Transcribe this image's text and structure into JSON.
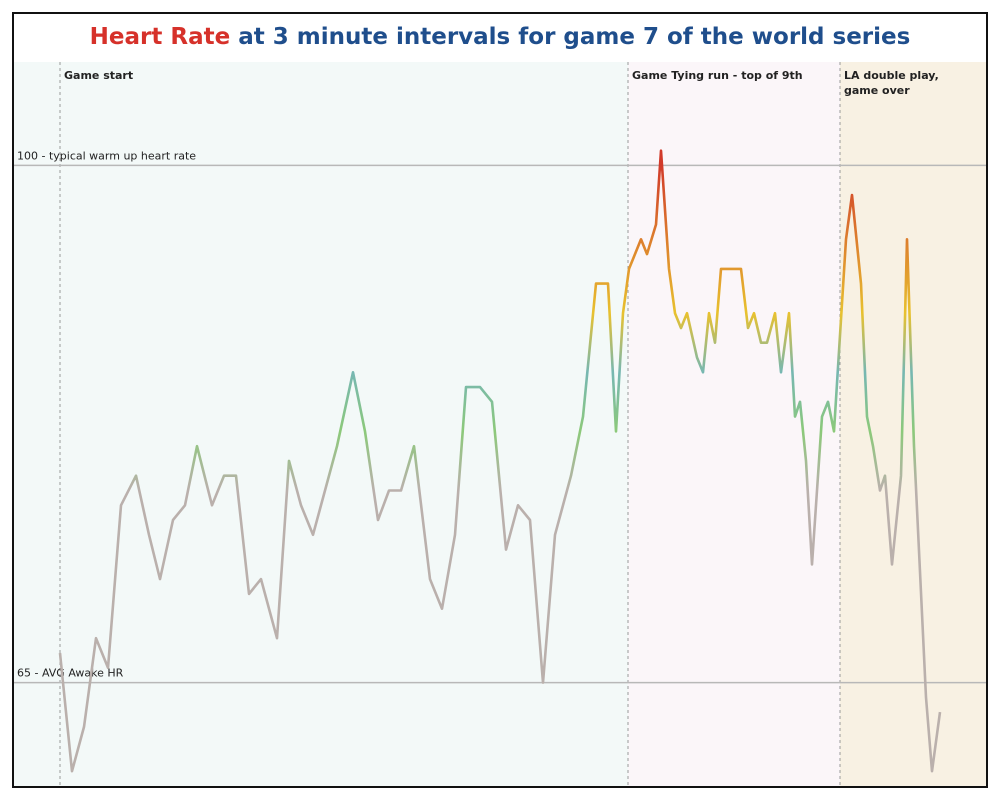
{
  "chart_data": {
    "type": "line",
    "title": {
      "highlight": "Heart Rate",
      "rest": "at 3 minute intervals for game 7 of the world series"
    },
    "title_colors": [
      "#d6312a",
      "#1f4e8c"
    ],
    "x": [
      0,
      12,
      24,
      36,
      48,
      61,
      76,
      89,
      100,
      113,
      125,
      137,
      152,
      164,
      176,
      189,
      201,
      217,
      229,
      241,
      253,
      265,
      277,
      293,
      305,
      318,
      329,
      341,
      354,
      370,
      382,
      395,
      406,
      420,
      432,
      446,
      458,
      470,
      483,
      495,
      511,
      523,
      536,
      548,
      556,
      563,
      569,
      581,
      587,
      596,
      601,
      609,
      615,
      621,
      627,
      637,
      643,
      649,
      655,
      661,
      671,
      681,
      688,
      694,
      701,
      707,
      715,
      721,
      729,
      735,
      740,
      746,
      752,
      762,
      768,
      774,
      786,
      792,
      801,
      807,
      813,
      820,
      825,
      832,
      841,
      847,
      854,
      866,
      872,
      880
    ],
    "series": [
      {
        "values": [
          67,
          59,
          62,
          68,
          66,
          77,
          79,
          75,
          72,
          76,
          77,
          81,
          77,
          79,
          79,
          71,
          72,
          68,
          80,
          77,
          75,
          78,
          81,
          86,
          82,
          76,
          78,
          78,
          81,
          72,
          70,
          75,
          85,
          85,
          84,
          74,
          77,
          76,
          65,
          75,
          79,
          83,
          92,
          92,
          82,
          90,
          93,
          95,
          94,
          96,
          101,
          93,
          90,
          89,
          90,
          87,
          86,
          90,
          88,
          93,
          93,
          93,
          89,
          90,
          88,
          88,
          90,
          86,
          90,
          83,
          84,
          80,
          73,
          83,
          84,
          82,
          95,
          98,
          92,
          83,
          81,
          78,
          79,
          73,
          79,
          95,
          81,
          64,
          59,
          63
        ]
      }
    ],
    "color_scale": [
      {
        "value": 78,
        "color": "#bab0ac"
      },
      {
        "value": 82,
        "color": "#8cc97a"
      },
      {
        "value": 86,
        "color": "#76b7b2"
      },
      {
        "value": 90,
        "color": "#e8c12f"
      },
      {
        "value": 100,
        "color": "#d13a2a"
      }
    ],
    "xlim": [
      -46,
      926
    ],
    "ylim": [
      58,
      107
    ],
    "reference_lines": [
      {
        "value": 100,
        "label": "100 - typical warm up heart rate"
      },
      {
        "value": 65,
        "label": "65 - AVG Awake HR"
      }
    ],
    "annotations": [
      {
        "x": 0,
        "lines": [
          "Game start"
        ]
      },
      {
        "x": 568,
        "lines": [
          "Game Tying run - top of 9th"
        ]
      },
      {
        "x": 780,
        "lines": [
          "LA double play,",
          "game over"
        ]
      }
    ],
    "band_colors": [
      "#f3f9f8",
      "#f3f9f8",
      "#fbf6f9",
      "#f8f1e3"
    ]
  }
}
